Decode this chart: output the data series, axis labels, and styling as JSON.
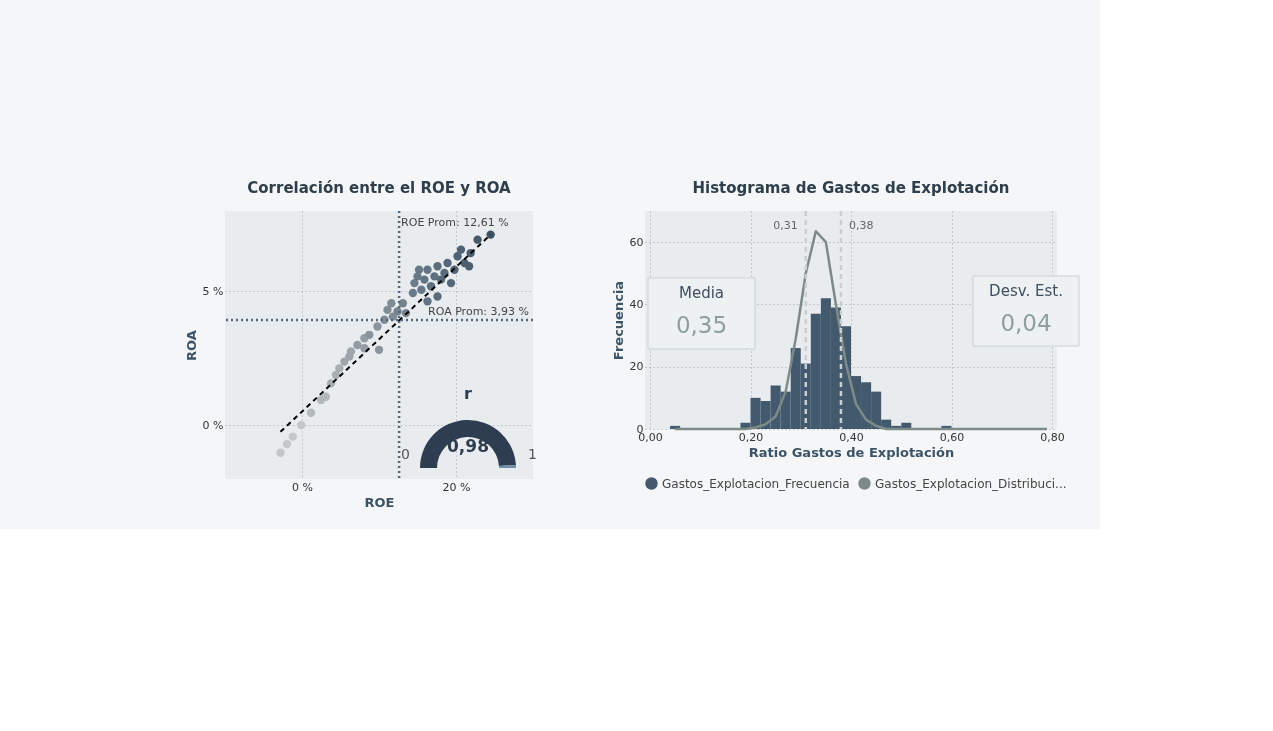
{
  "chart_data": [
    {
      "type": "scatter",
      "title": "Correlación entre el ROE y ROA",
      "xlabel": "ROE",
      "ylabel": "ROA",
      "xlim": [
        -10,
        30
      ],
      "ylim": [
        -2,
        8
      ],
      "xticks": [
        {
          "value": 0,
          "label": "0 %"
        },
        {
          "value": 20,
          "label": "20 %"
        }
      ],
      "yticks": [
        {
          "value": 0,
          "label": "0 %"
        },
        {
          "value": 5,
          "label": "5 %"
        }
      ],
      "grid": true,
      "ref_lines": [
        {
          "axis": "x",
          "value": 12.61,
          "label": "ROE Prom: 12,61 %",
          "color": "#53687a",
          "line_style": "dotted"
        },
        {
          "axis": "y",
          "value": 3.93,
          "label": "ROA Prom: 3,93 %",
          "color": "#53687a",
          "line_style": "dotted"
        }
      ],
      "series": [
        {
          "type": "scatter",
          "marker": "circle",
          "x": [
            -2.8,
            -1.95,
            -1.2,
            -0.1,
            1.17,
            2.47,
            3.1,
            3.77,
            4.4,
            4.85,
            5.5,
            6.15,
            6.36,
            7.2,
            8.1,
            8.1,
            8.74,
            9.8,
            10.0,
            10.7,
            11.1,
            11.6,
            11.8,
            12.4,
            13.1,
            13.5,
            14.4,
            14.6,
            15.0,
            15.2,
            15.5,
            15.9,
            16.3,
            16.3,
            16.75,
            17.2,
            17.6,
            17.6,
            18.05,
            18.5,
            18.9,
            19.35,
            19.8,
            20.2,
            20.65,
            21.1,
            21.7,
            21.9,
            22.8,
            24.5
          ],
          "values": [
            -1.02,
            -0.7,
            -0.42,
            0.01,
            0.47,
            0.95,
            1.07,
            1.57,
            1.88,
            2.13,
            2.38,
            2.57,
            2.76,
            3.0,
            2.88,
            3.25,
            3.38,
            3.69,
            2.82,
            3.94,
            4.31,
            4.56,
            4.06,
            4.25,
            4.56,
            4.19,
            4.94,
            5.31,
            5.56,
            5.81,
            5.06,
            5.44,
            5.81,
            4.63,
            5.19,
            5.56,
            5.94,
            4.81,
            5.44,
            5.69,
            6.06,
            5.31,
            5.81,
            6.31,
            6.56,
            6.06,
            5.94,
            6.43,
            6.93,
            7.12
          ],
          "colors": [
            "#c4c6c8",
            "#c4c6c8",
            "#c4c6c8",
            "#c4c6c8",
            "#b3b8bb",
            "#b3b8bb",
            "#b3b8bb",
            "#a9b0b4",
            "#a9b0b4",
            "#a9b0b4",
            "#9ea6ac",
            "#9ea6ac",
            "#9ea6ac",
            "#939ca3",
            "#939ca3",
            "#939ca3",
            "#8a949c",
            "#8a949c",
            "#8a949c",
            "#7f8c96",
            "#7f8c96",
            "#7f8c96",
            "#7f8c96",
            "#76848f",
            "#76848f",
            "#76848f",
            "#6b7b88",
            "#6b7b88",
            "#667787",
            "#667787",
            "#667787",
            "#627383",
            "#627383",
            "#627383",
            "#5e7080",
            "#5e7080",
            "#5b6d7d",
            "#5b6d7d",
            "#586a7a",
            "#586a7a",
            "#556778",
            "#556778",
            "#526475",
            "#4f6273",
            "#4f6273",
            "#4c5f70",
            "#4c5f70",
            "#4a5d6e",
            "#46596a",
            "#3f5366"
          ]
        },
        {
          "type": "line",
          "color": "#000000",
          "line_style": "dashed",
          "x": [
            -2.8,
            24.5
          ],
          "values": [
            -0.24,
            7.12
          ]
        }
      ]
    },
    {
      "type": "donut",
      "title": "r",
      "categories": [
        null,
        null
      ],
      "values": [
        98,
        2
      ],
      "colors": [
        "#2e3e50",
        "#6f8ea8"
      ],
      "annotations": [
        "0",
        "0,98",
        "1"
      ]
    },
    {
      "type": "histogram",
      "title": "Histograma de Gastos de Explotación",
      "xlabel": "Ratio Gastos de Explotación",
      "ylabel": "Frecuencia",
      "xlim": [
        0,
        0.8
      ],
      "xticks": [
        {
          "value": 0,
          "label": "0,00"
        },
        {
          "value": 0.2,
          "label": "0,20"
        },
        {
          "value": 0.4,
          "label": "0,40"
        },
        {
          "value": 0.6,
          "label": "0,60"
        },
        {
          "value": 0.8,
          "label": "0,80"
        }
      ],
      "ylim": [
        0,
        70
      ],
      "yticks": [
        0,
        20,
        40,
        60
      ],
      "grid": true,
      "legend": "bottom",
      "bins": [
        0.04,
        0.06,
        0.08,
        0.1,
        0.12,
        0.14,
        0.16,
        0.18,
        0.2,
        0.22,
        0.24,
        0.26,
        0.28,
        0.3,
        0.32,
        0.34,
        0.36,
        0.38,
        0.4,
        0.42,
        0.44,
        0.46,
        0.48,
        0.5,
        0.52,
        0.54,
        0.56,
        0.58,
        0.6
      ],
      "ref_lines": [
        {
          "axis": "x",
          "value": 0.31,
          "label": "0,31",
          "color": "#c9cfd1",
          "line_style": "dashed"
        },
        {
          "axis": "x",
          "value": 0.38,
          "label": "0,38",
          "color": "#c9cfd1",
          "line_style": "dashed"
        }
      ],
      "annotations": [
        "Media",
        "0,35",
        "Desv. Est.",
        "0,04"
      ],
      "series": [
        {
          "name": "Gastos_Explotacion_Frecuencia",
          "type": "histogram",
          "color": "#435a6e",
          "values": [
            1,
            0,
            0,
            0,
            0,
            0,
            0,
            2,
            10,
            9,
            14,
            12,
            26,
            21,
            37,
            42,
            39,
            33,
            17,
            15,
            12,
            3,
            1,
            2,
            0,
            0,
            0,
            1
          ]
        },
        {
          "name": "Gastos_Explotacion_Distribuci...",
          "type": "line",
          "color": "#7d8b88",
          "x": [
            0.05,
            0.19,
            0.21,
            0.23,
            0.25,
            0.27,
            0.29,
            0.31,
            0.33,
            0.35,
            0.37,
            0.39,
            0.41,
            0.43,
            0.45,
            0.47,
            0.79
          ],
          "values": [
            0,
            0,
            0.5,
            1.5,
            4,
            12,
            29,
            50,
            63.5,
            60,
            40,
            21,
            8,
            3,
            1,
            0,
            0
          ]
        }
      ]
    }
  ]
}
